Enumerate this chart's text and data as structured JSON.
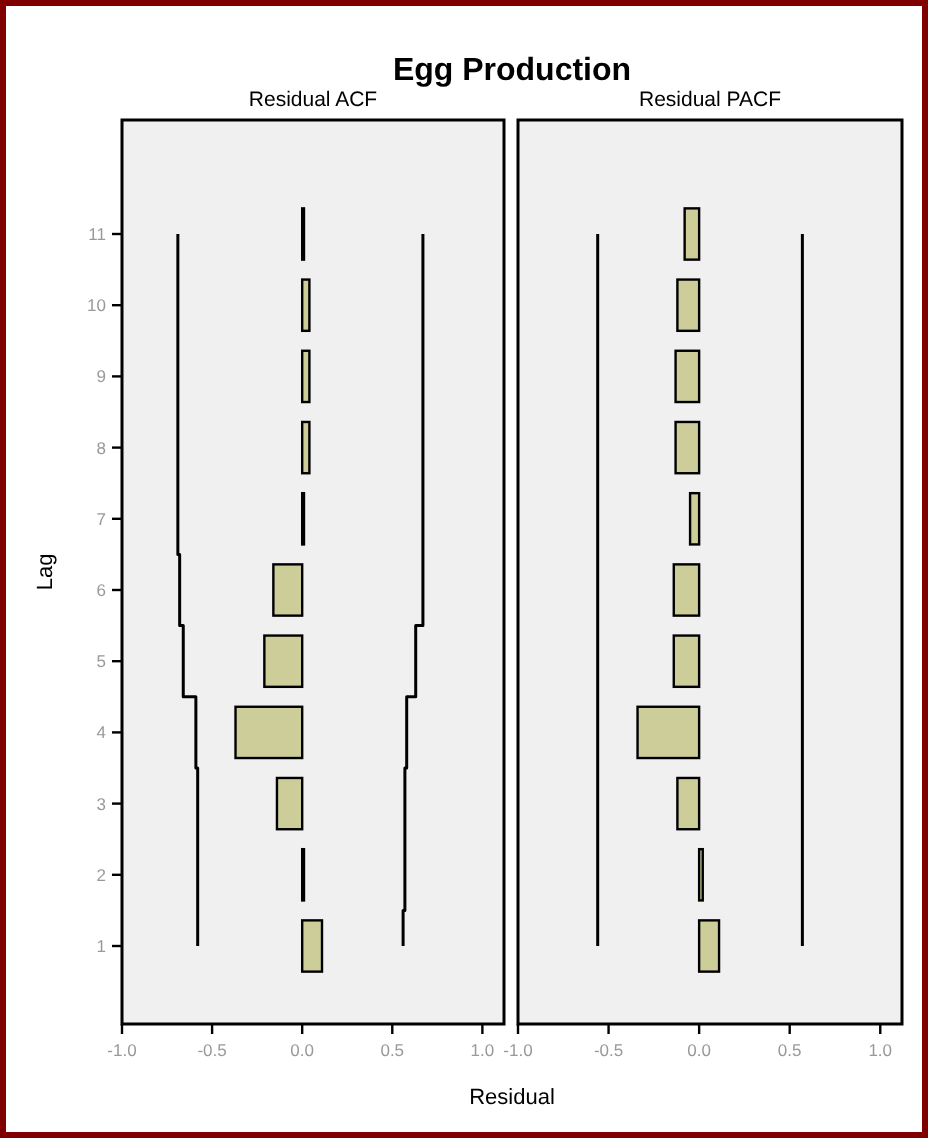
{
  "chart_data": [
    {
      "type": "bar",
      "title": "Egg Production",
      "subtitle": "Residual ACF",
      "xlabel": "Residual",
      "ylabel": "Lag",
      "orientation": "horizontal",
      "categories": [
        "11",
        "10",
        "9",
        "8",
        "7",
        "6",
        "5",
        "4",
        "3",
        "2",
        "1"
      ],
      "xlim": [
        -1.0,
        1.12
      ],
      "xticks": [
        {
          "value": -1,
          "label": "-1.0"
        },
        {
          "value": -0.5,
          "label": "-0.5"
        },
        {
          "value": 0,
          "label": "0.0"
        },
        {
          "value": 0.5,
          "label": "0.5"
        },
        {
          "value": 1,
          "label": "1.0"
        }
      ],
      "series": [
        {
          "type": "bar",
          "color": "#cdcd9a",
          "values": [
            0.01,
            0.04,
            0.04,
            0.04,
            0.01,
            -0.16,
            -0.21,
            -0.37,
            -0.14,
            0.01,
            0.11
          ]
        },
        {
          "type": "step",
          "color": "#000000",
          "values": [
            0.67,
            0.67,
            0.67,
            0.67,
            0.67,
            0.67,
            0.63,
            0.58,
            0.57,
            0.57,
            0.56
          ]
        },
        {
          "type": "step",
          "color": "#000000",
          "values": [
            -0.69,
            -0.69,
            -0.69,
            -0.69,
            -0.69,
            -0.68,
            -0.66,
            -0.59,
            -0.58,
            -0.58,
            -0.58
          ]
        }
      ]
    },
    {
      "type": "bar",
      "subtitle": "Residual PACF",
      "orientation": "horizontal",
      "tick_labels": "x",
      "categories": [
        "11",
        "10",
        "9",
        "8",
        "7",
        "6",
        "5",
        "4",
        "3",
        "2",
        "1"
      ],
      "xlim": [
        -1.0,
        1.12
      ],
      "xticks": [
        {
          "value": -1,
          "label": "-1.0"
        },
        {
          "value": -0.5,
          "label": "-0.5"
        },
        {
          "value": 0,
          "label": "0.0"
        },
        {
          "value": 0.5,
          "label": "0.5"
        },
        {
          "value": 1,
          "label": "1.0"
        }
      ],
      "series": [
        {
          "type": "bar",
          "color": "#cdcd9a",
          "values": [
            -0.08,
            -0.12,
            -0.13,
            -0.13,
            -0.05,
            -0.14,
            -0.14,
            -0.34,
            -0.12,
            0.02,
            0.11
          ]
        },
        {
          "type": "step",
          "color": "#000000",
          "values": [
            0.57,
            0.57,
            0.57,
            0.57,
            0.57,
            0.57,
            0.57,
            0.57,
            0.57,
            0.57,
            0.57
          ]
        },
        {
          "type": "step",
          "color": "#000000",
          "values": [
            -0.56,
            -0.56,
            -0.56,
            -0.56,
            -0.56,
            -0.56,
            -0.56,
            -0.56,
            -0.56,
            -0.56,
            -0.56
          ]
        }
      ]
    }
  ]
}
